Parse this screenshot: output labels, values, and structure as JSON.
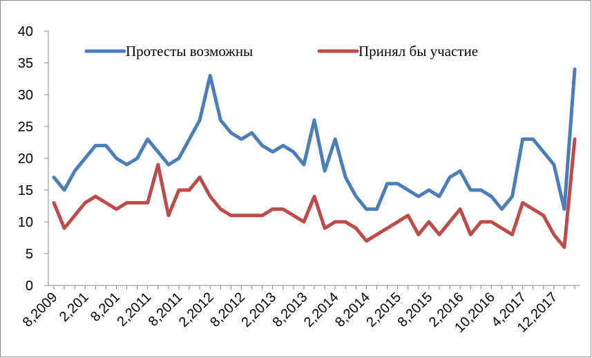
{
  "chart_data": {
    "type": "line",
    "categories": [
      "8,2009",
      null,
      null,
      "2,201",
      null,
      null,
      "8,201",
      null,
      null,
      "2,2011",
      null,
      null,
      "8,2011",
      null,
      null,
      "2,2012",
      null,
      null,
      "8,2012",
      null,
      null,
      "2,2013",
      null,
      null,
      "8,2013",
      null,
      null,
      "2,2014",
      null,
      null,
      "8,2014",
      null,
      null,
      "2,2015",
      null,
      null,
      "8,2015",
      null,
      null,
      "2,2016",
      null,
      null,
      "10,2016",
      null,
      null,
      "4,2017",
      null,
      null,
      "12,2017",
      null,
      null
    ],
    "series": [
      {
        "name": "Протесты возможны",
        "color": "#4a7ebb",
        "values": [
          17,
          15,
          18,
          20,
          22,
          22,
          20,
          19,
          20,
          23,
          21,
          19,
          20,
          23,
          26,
          33,
          26,
          24,
          23,
          24,
          22,
          21,
          22,
          21,
          19,
          26,
          18,
          23,
          17,
          14,
          12,
          12,
          16,
          16,
          15,
          14,
          15,
          14,
          17,
          18,
          15,
          15,
          14,
          12,
          14,
          23,
          23,
          21,
          19,
          12,
          34
        ]
      },
      {
        "name": "Принял бы участие",
        "color": "#be4b48",
        "values": [
          13,
          9,
          11,
          13,
          14,
          13,
          12,
          13,
          13,
          13,
          19,
          11,
          15,
          15,
          17,
          14,
          12,
          11,
          11,
          11,
          11,
          12,
          12,
          11,
          10,
          14,
          9,
          10,
          10,
          9,
          7,
          8,
          9,
          10,
          11,
          8,
          10,
          8,
          10,
          12,
          8,
          10,
          10,
          9,
          8,
          13,
          12,
          11,
          8,
          6,
          23
        ]
      }
    ],
    "ylim": [
      0,
      40
    ],
    "yticks": [
      0,
      5,
      10,
      15,
      20,
      25,
      30,
      35,
      40
    ],
    "legend": "top"
  }
}
